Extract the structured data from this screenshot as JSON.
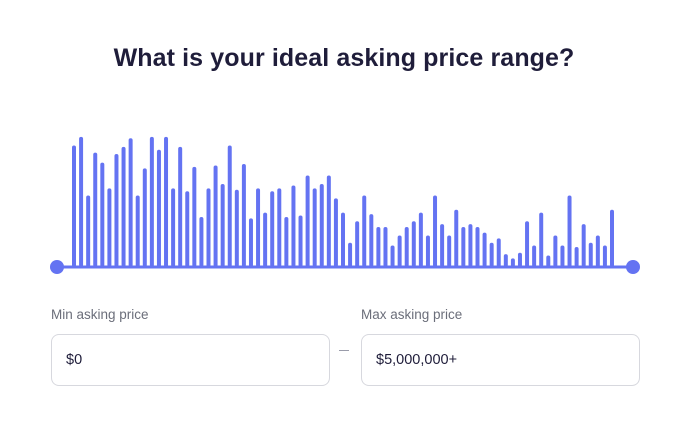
{
  "title": "What is your ideal asking price range?",
  "slider": {
    "min_handle": 0,
    "max_handle": 1,
    "accent_color": "#6473f2"
  },
  "histogram": {
    "bars": [
      0.85,
      0.91,
      0.5,
      0.8,
      0.73,
      0.55,
      0.79,
      0.84,
      0.9,
      0.5,
      0.69,
      0.91,
      0.82,
      0.91,
      0.55,
      0.84,
      0.53,
      0.7,
      0.35,
      0.55,
      0.71,
      0.58,
      0.85,
      0.54,
      0.72,
      0.34,
      0.55,
      0.38,
      0.53,
      0.55,
      0.35,
      0.57,
      0.36,
      0.64,
      0.55,
      0.58,
      0.64,
      0.48,
      0.38,
      0.17,
      0.32,
      0.5,
      0.37,
      0.28,
      0.28,
      0.15,
      0.22,
      0.28,
      0.32,
      0.38,
      0.22,
      0.5,
      0.3,
      0.22,
      0.4,
      0.28,
      0.3,
      0.28,
      0.24,
      0.17,
      0.2,
      0.09,
      0.06,
      0.1,
      0.32,
      0.15,
      0.38,
      0.08,
      0.22,
      0.15,
      0.5,
      0.14,
      0.3,
      0.17,
      0.22,
      0.15,
      0.4
    ]
  },
  "min_field": {
    "label": "Min asking price",
    "value": "$0"
  },
  "max_field": {
    "label": "Max asking price",
    "value": "$5,000,000+"
  }
}
